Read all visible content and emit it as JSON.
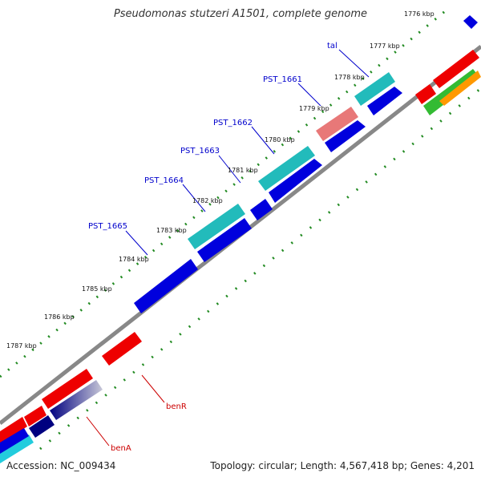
{
  "map": {
    "title": "Pseudomonas stutzeri A1501, complete genome",
    "accession": "Accession: NC_009434",
    "summary": "Topology: circular; Length: 4,567,418 bp; Genes: 4,201"
  },
  "ticks": [
    {
      "label": "1776 kbp"
    },
    {
      "label": "1777 kbp"
    },
    {
      "label": "1778 kbp"
    },
    {
      "label": "1779 kbp"
    },
    {
      "label": "1780 kbp"
    },
    {
      "label": "1781 kbp"
    },
    {
      "label": "1782 kbp"
    },
    {
      "label": "1783 kbp"
    },
    {
      "label": "1784 kbp"
    },
    {
      "label": "1785 kbp"
    },
    {
      "label": "1786 kbp"
    },
    {
      "label": "1787 kbp"
    }
  ],
  "gene_labels": [
    {
      "label": "tal",
      "color": "#0000cc"
    },
    {
      "label": "PST_1661",
      "color": "#0000cc"
    },
    {
      "label": "PST_1662",
      "color": "#0000cc"
    },
    {
      "label": "PST_1663",
      "color": "#0000cc"
    },
    {
      "label": "PST_1664",
      "color": "#0000cc"
    },
    {
      "label": "PST_1665",
      "color": "#0000cc"
    },
    {
      "label": "benR",
      "color": "#cc0000"
    },
    {
      "label": "benA",
      "color": "#cc0000"
    }
  ],
  "colors": {
    "backbone": "#888888",
    "tick": "#228b22",
    "cyan_gene": "#22bbbb",
    "blue_gene": "#0000dd",
    "red_gene": "#ee0000",
    "pink_gene": "#e87878",
    "navy_gene": "#000080",
    "green_gene": "#33bb33",
    "orange_gene": "#ff9900"
  }
}
